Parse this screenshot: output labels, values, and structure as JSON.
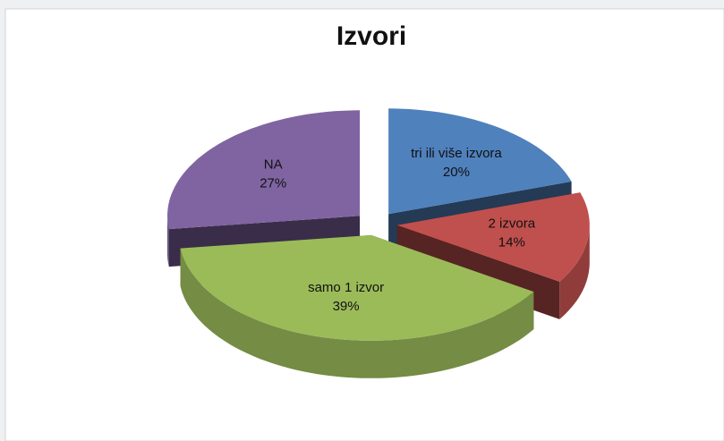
{
  "chart_data": {
    "type": "pie3d",
    "title": "Izvori",
    "categories": [
      "tri ili više izvora",
      "2 izvora",
      "samo 1 izvor",
      "NA"
    ],
    "values": [
      20,
      14,
      39,
      27
    ],
    "value_labels": [
      "20%",
      "14%",
      "39%",
      "27%"
    ],
    "colors": [
      "#4f81bd",
      "#c0504d",
      "#9bbb59",
      "#8064a2"
    ]
  }
}
